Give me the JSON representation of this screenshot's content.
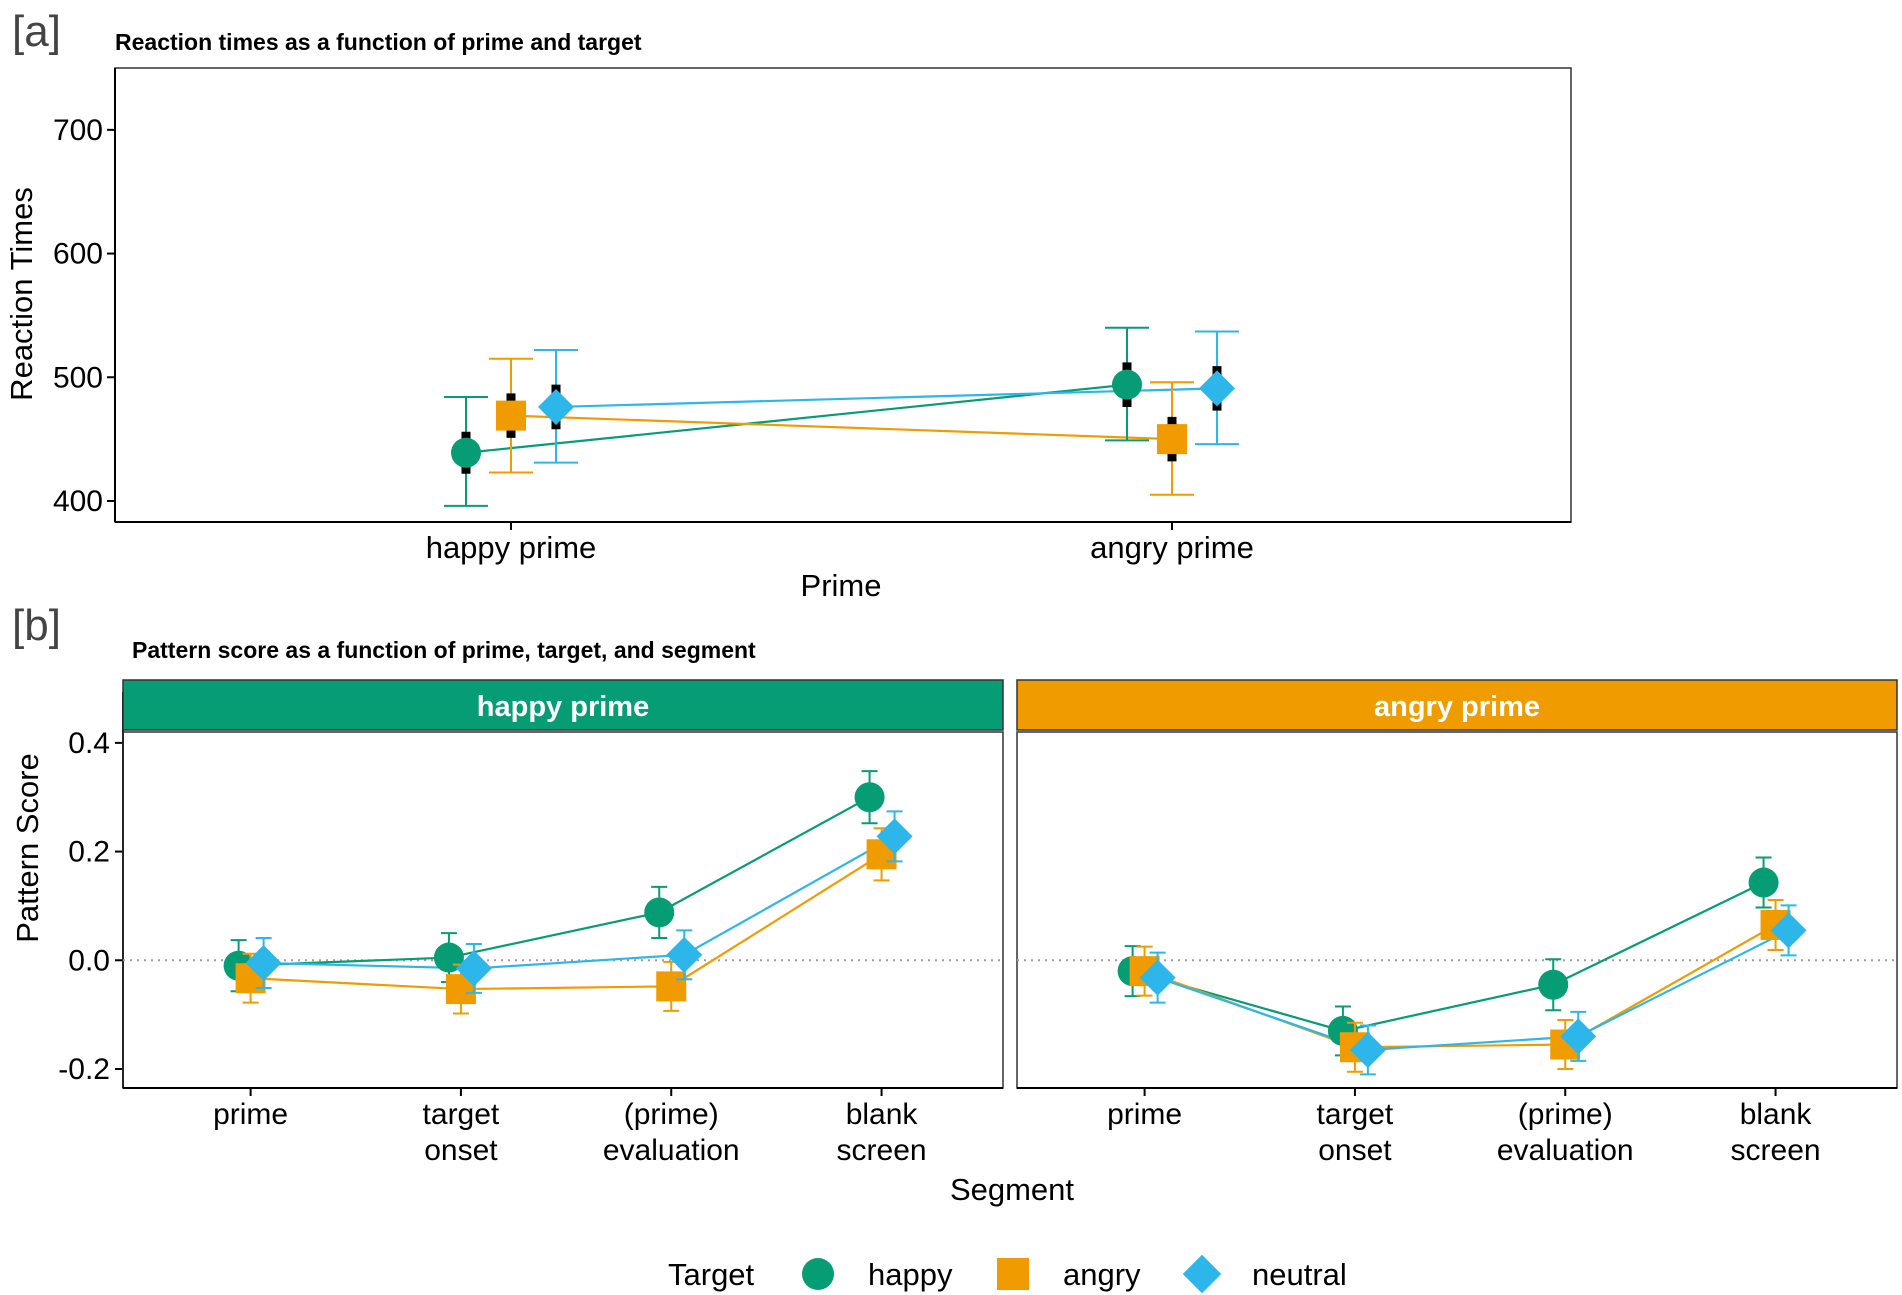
{
  "colors": {
    "happy": "#069d74",
    "angry": "#f09c00",
    "neutral": "#2db6ea",
    "axis": "#000000",
    "frame": "#333333",
    "zero_line": "#9e9e9e"
  },
  "chart_data": [
    {
      "panel_letter": "[a]",
      "type": "line",
      "title": "Reaction times as a function of prime and target",
      "xlabel": "Prime",
      "ylabel": "Reaction Times",
      "categories": [
        "happy prime",
        "angry prime"
      ],
      "yticks": [
        "400",
        "500",
        "600",
        "700"
      ],
      "ylim": [
        383,
        750
      ],
      "series": [
        {
          "name": "happy",
          "marker": "circle",
          "values": [
            439,
            494
          ],
          "err_low": [
            396,
            449
          ],
          "err_high": [
            484,
            540
          ],
          "inner_low": [
            422,
            476
          ],
          "inner_high": [
            456,
            512
          ]
        },
        {
          "name": "angry",
          "marker": "square",
          "values": [
            469,
            450
          ],
          "err_low": [
            423,
            405
          ],
          "err_high": [
            515,
            496
          ],
          "inner_low": [
            451,
            432
          ],
          "inner_high": [
            487,
            468
          ]
        },
        {
          "name": "neutral",
          "marker": "diamond",
          "values": [
            476,
            491
          ],
          "err_low": [
            431,
            446
          ],
          "err_high": [
            522,
            537
          ],
          "inner_low": [
            458,
            473
          ],
          "inner_high": [
            494,
            509
          ]
        }
      ]
    },
    {
      "panel_letter": "[b]",
      "type": "line",
      "title": "Pattern score as a function of prime, target, and segment",
      "xlabel": "Segment",
      "ylabel": "Pattern Score",
      "yticks": [
        "-0.2",
        "0.0",
        "0.2",
        "0.4"
      ],
      "ylim": [
        -0.235,
        0.42
      ],
      "categories": [
        "prime",
        "target onset",
        "(prime) evaluation",
        "blank screen"
      ],
      "category_lines": [
        [
          "prime"
        ],
        [
          "target",
          "onset"
        ],
        [
          "(prime)",
          "evaluation"
        ],
        [
          "blank",
          "screen"
        ]
      ],
      "facets": [
        {
          "label": "happy prime",
          "series": [
            {
              "name": "happy",
              "values": [
                -0.01,
                0.005,
                0.088,
                0.3
              ],
              "err": [
                0.047,
                0.045,
                0.047,
                0.048
              ]
            },
            {
              "name": "angry",
              "values": [
                -0.033,
                -0.053,
                -0.048,
                0.195
              ],
              "err": [
                0.045,
                0.045,
                0.045,
                0.048
              ]
            },
            {
              "name": "neutral",
              "values": [
                -0.005,
                -0.015,
                0.01,
                0.228
              ],
              "err": [
                0.046,
                0.045,
                0.045,
                0.046
              ]
            }
          ]
        },
        {
          "label": "angry prime",
          "series": [
            {
              "name": "happy",
              "values": [
                -0.02,
                -0.13,
                -0.045,
                0.143
              ],
              "err": [
                0.046,
                0.045,
                0.047,
                0.046
              ]
            },
            {
              "name": "angry",
              "values": [
                -0.02,
                -0.16,
                -0.155,
                0.065
              ],
              "err": [
                0.045,
                0.045,
                0.045,
                0.046
              ]
            },
            {
              "name": "neutral",
              "values": [
                -0.032,
                -0.165,
                -0.14,
                0.055
              ],
              "err": [
                0.046,
                0.045,
                0.045,
                0.046
              ]
            }
          ]
        }
      ]
    }
  ],
  "legend": {
    "title": "Target",
    "items": [
      {
        "name": "happy",
        "label": "happy",
        "marker": "circle"
      },
      {
        "name": "angry",
        "label": "angry",
        "marker": "square"
      },
      {
        "name": "neutral",
        "label": "neutral",
        "marker": "diamond"
      }
    ]
  }
}
